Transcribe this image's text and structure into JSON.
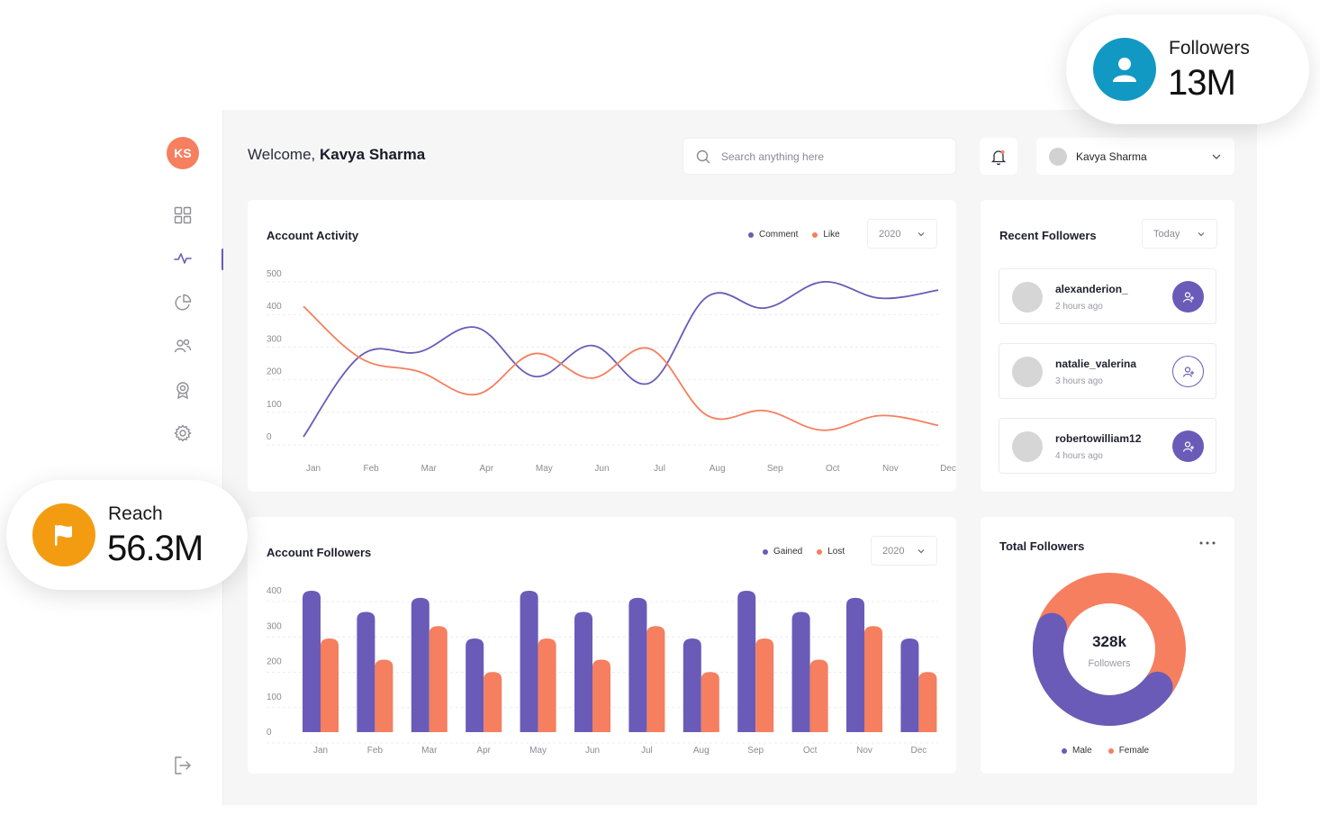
{
  "sidebar": {
    "initials": "KS",
    "items": [
      "dashboard-icon",
      "activity-icon",
      "pie-chart-icon",
      "users-icon",
      "award-icon",
      "settings-icon"
    ],
    "logout_icon": "logout-icon"
  },
  "header": {
    "welcome_prefix": "Welcome,",
    "user_name": "Kavya Sharma",
    "search_placeholder": "Search anything here",
    "profile_name": "Kavya Sharma"
  },
  "activity": {
    "title": "Account Activity",
    "legend": [
      "Comment",
      "Like"
    ],
    "year": "2020"
  },
  "followers_chart": {
    "title": "Account Followers",
    "legend": [
      "Gained",
      "Lost"
    ],
    "year": "2020"
  },
  "recent": {
    "title": "Recent Followers",
    "filter": "Today",
    "items": [
      {
        "name": "alexanderion_",
        "time": "2 hours ago"
      },
      {
        "name": "natalie_valerina",
        "time": "3 hours ago"
      },
      {
        "name": "robertowilliam12",
        "time": "4 hours ago"
      }
    ]
  },
  "total": {
    "title": "Total Followers",
    "value": "328k",
    "label": "Followers",
    "legend": [
      "Male",
      "Female"
    ]
  },
  "badges": {
    "followers": {
      "label": "Followers",
      "value": "13M"
    },
    "reach": {
      "label": "Reach",
      "value": "56.3M"
    }
  },
  "colors": {
    "purple": "#6a5bb8",
    "orange": "#f57f5f",
    "teal": "#1199c4",
    "amber": "#f39c12"
  },
  "chart_data": [
    {
      "type": "line",
      "title": "Account Activity",
      "categories": [
        "Jan",
        "Feb",
        "Mar",
        "Apr",
        "May",
        "Jun",
        "Jul",
        "Aug",
        "Sep",
        "Oct",
        "Nov",
        "Dec"
      ],
      "ylim": [
        0,
        500
      ],
      "yticks": [
        0,
        100,
        200,
        300,
        400,
        500
      ],
      "series": [
        {
          "name": "Comment",
          "color": "#6a5bb8",
          "values": [
            0,
            250,
            260,
            335,
            185,
            280,
            165,
            430,
            395,
            475,
            425,
            450
          ]
        },
        {
          "name": "Like",
          "color": "#f57f5f",
          "values": [
            400,
            240,
            200,
            130,
            255,
            180,
            270,
            65,
            80,
            20,
            65,
            35
          ]
        }
      ]
    },
    {
      "type": "bar",
      "title": "Account Followers",
      "categories": [
        "Jan",
        "Feb",
        "Mar",
        "Apr",
        "May",
        "Jun",
        "Jul",
        "Aug",
        "Sep",
        "Oct",
        "Nov",
        "Dec"
      ],
      "ylim": [
        0,
        400
      ],
      "yticks": [
        0,
        100,
        200,
        300,
        400
      ],
      "series": [
        {
          "name": "Gained",
          "color": "#6a5bb8",
          "values": [
            400,
            340,
            380,
            265,
            400,
            340,
            380,
            265,
            400,
            340,
            380,
            265
          ]
        },
        {
          "name": "Lost",
          "color": "#f57f5f",
          "values": [
            265,
            205,
            300,
            170,
            265,
            205,
            300,
            170,
            265,
            205,
            300,
            170
          ]
        }
      ]
    },
    {
      "type": "pie",
      "title": "Total Followers",
      "categories": [
        "Male",
        "Female"
      ],
      "values": [
        45,
        55
      ],
      "colors": [
        "#6a5bb8",
        "#f57f5f"
      ]
    }
  ]
}
